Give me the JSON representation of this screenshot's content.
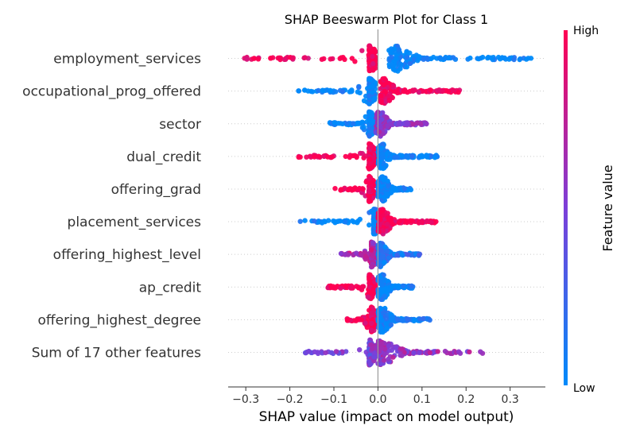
{
  "chart_data": {
    "type": "scatter",
    "subtype": "shap-beeswarm",
    "title": "SHAP Beeswarm Plot for Class 1",
    "xlabel": "SHAP value (impact on model output)",
    "xlim": [
      -0.34,
      0.38
    ],
    "xticks": [
      -0.3,
      -0.2,
      -0.1,
      0.0,
      0.1,
      0.2,
      0.3
    ],
    "xtick_labels": [
      "−0.3",
      "−0.2",
      "−0.1",
      "0.0",
      "0.1",
      "0.2",
      "0.3"
    ],
    "grid": false,
    "colorbar": {
      "label": "Feature value",
      "high": "High",
      "low": "Low",
      "color_high": "#ff0052",
      "color_low": "#008bfb"
    },
    "features": [
      {
        "name": "employment_services",
        "segments": [
          {
            "min": -0.31,
            "max": -0.005,
            "center": -0.02,
            "spread": 0.06,
            "fv": 1.0
          },
          {
            "min": 0.025,
            "max": 0.35,
            "center": 0.045,
            "spread": 0.06,
            "fv": 0.0
          }
        ]
      },
      {
        "name": "occupational_prog_offered",
        "segments": [
          {
            "min": -0.19,
            "max": -0.005,
            "center": -0.02,
            "spread": 0.04,
            "fv": 0.0
          },
          {
            "min": 0.005,
            "max": 0.195,
            "center": 0.015,
            "spread": 0.04,
            "fv": 1.0
          }
        ]
      },
      {
        "name": "sector",
        "segments": [
          {
            "min": -0.115,
            "max": -0.005,
            "center": -0.02,
            "spread": 0.025,
            "fv": 0.0
          },
          {
            "min": -0.005,
            "max": 0.11,
            "center": 0.005,
            "spread": 0.03,
            "fv": 0.55
          }
        ]
      },
      {
        "name": "dual_credit",
        "segments": [
          {
            "min": -0.185,
            "max": -0.005,
            "center": -0.02,
            "spread": 0.03,
            "fv": 1.0
          },
          {
            "min": 0.0,
            "max": 0.135,
            "center": 0.01,
            "spread": 0.025,
            "fv": 0.0
          }
        ]
      },
      {
        "name": "offering_grad",
        "segments": [
          {
            "min": -0.1,
            "max": -0.005,
            "center": -0.02,
            "spread": 0.025,
            "fv": 1.0
          },
          {
            "min": 0.0,
            "max": 0.075,
            "center": 0.01,
            "spread": 0.03,
            "fv": 0.0
          }
        ]
      },
      {
        "name": "placement_services",
        "segments": [
          {
            "min": -0.18,
            "max": 0.0,
            "center": -0.01,
            "spread": 0.04,
            "fv": 0.0
          },
          {
            "min": 0.0,
            "max": 0.135,
            "center": 0.01,
            "spread": 0.035,
            "fv": 1.0
          }
        ]
      },
      {
        "name": "offering_highest_level",
        "segments": [
          {
            "min": -0.085,
            "max": 0.0,
            "center": -0.015,
            "spread": 0.025,
            "fv": 0.7
          },
          {
            "min": 0.0,
            "max": 0.095,
            "center": 0.005,
            "spread": 0.03,
            "fv": 0.15
          }
        ]
      },
      {
        "name": "ap_credit",
        "segments": [
          {
            "min": -0.115,
            "max": -0.005,
            "center": -0.02,
            "spread": 0.025,
            "fv": 1.0
          },
          {
            "min": 0.0,
            "max": 0.08,
            "center": 0.01,
            "spread": 0.03,
            "fv": 0.0
          }
        ]
      },
      {
        "name": "offering_highest_degree",
        "segments": [
          {
            "min": -0.07,
            "max": 0.0,
            "center": -0.015,
            "spread": 0.025,
            "fv": 1.0
          },
          {
            "min": 0.0,
            "max": 0.12,
            "center": 0.01,
            "spread": 0.035,
            "fv": 0.05
          }
        ]
      },
      {
        "name": "Sum of 17 other features",
        "segments": [
          {
            "min": -0.175,
            "max": 0.0,
            "center": -0.02,
            "spread": 0.03,
            "fv": 0.5
          },
          {
            "min": 0.0,
            "max": 0.245,
            "center": 0.01,
            "spread": 0.07,
            "fv": 0.6
          }
        ]
      }
    ]
  }
}
